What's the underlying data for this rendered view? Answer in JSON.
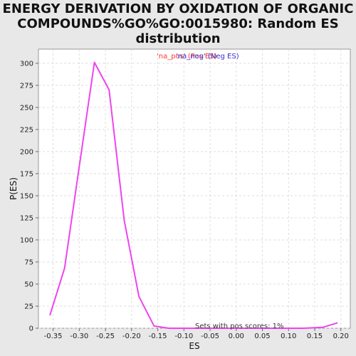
{
  "chart_data": {
    "type": "line",
    "title_lines": [
      "ENERGY DERIVATION BY OXIDATION OF ORGANIC",
      "COMPOUNDS%GO%GO:0015980: Random ES",
      "distribution"
    ],
    "xlabel": "ES",
    "ylabel": "P(ES)",
    "xlim": [
      -0.378,
      0.218
    ],
    "ylim": [
      0,
      316
    ],
    "xticks": [
      -0.35,
      -0.3,
      -0.25,
      -0.2,
      -0.15,
      -0.1,
      -0.05,
      0.0,
      0.05,
      0.1,
      0.15,
      0.2
    ],
    "xtick_labels": [
      "-0.35",
      "-0.30",
      "-0.25",
      "-0.20",
      "-0.15",
      "-0.10",
      "-0.05",
      "0.00",
      "0.05",
      "0.10",
      "0.15",
      "0.20"
    ],
    "yticks": [
      0,
      25,
      50,
      75,
      100,
      125,
      150,
      175,
      200,
      225,
      250,
      275,
      300
    ],
    "ytick_labels": [
      "0",
      "25",
      "50",
      "75",
      "100",
      "125",
      "150",
      "175",
      "200",
      "225",
      "250",
      "275",
      "300"
    ],
    "grid": true,
    "legend": {
      "placement": "top-center",
      "entries": [
        {
          "text": "'na_pos' (Pos ES)",
          "color": "#ff3333"
        },
        {
          "text": "'na_neg' (Neg ES)",
          "color": "#3333cc"
        }
      ]
    },
    "annotation": "Sets with pos scores: 1%",
    "series": [
      {
        "color": "#ee44ee",
        "x": [
          -0.356,
          -0.328,
          -0.3,
          -0.271,
          -0.243,
          -0.214,
          -0.186,
          -0.157,
          -0.129,
          -0.1,
          -0.072,
          -0.043,
          -0.015,
          0.014,
          0.042,
          0.071,
          0.099,
          0.128,
          0.165,
          0.193
        ],
        "y": [
          15,
          68,
          183,
          301,
          270,
          122,
          36,
          2.5,
          0,
          0,
          0,
          0,
          0,
          0,
          0,
          0,
          0,
          0,
          1,
          6
        ]
      }
    ]
  }
}
